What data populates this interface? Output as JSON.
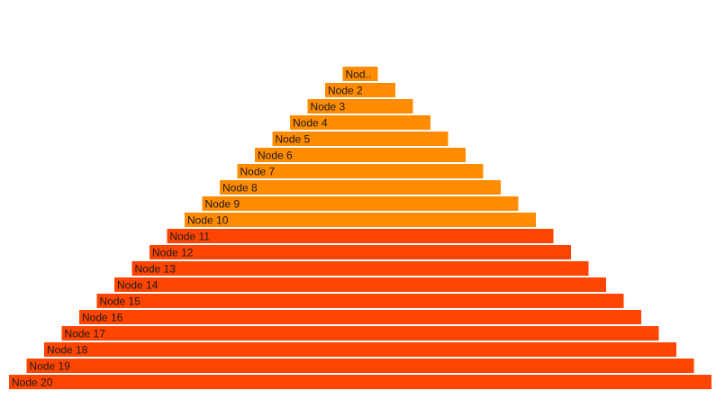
{
  "chart_data": {
    "type": "bar",
    "subtype": "pyramid",
    "title": "",
    "xlabel": "",
    "ylabel": "",
    "grid": false,
    "legend": "none",
    "categories": [
      "Nod..",
      "Node 2",
      "Node 3",
      "Node 4",
      "Node 5",
      "Node 6",
      "Node 7",
      "Node 8",
      "Node 9",
      "Node 10",
      "Node 11",
      "Node 12",
      "Node 13",
      "Node 14",
      "Node 15",
      "Node 16",
      "Node 17",
      "Node 18",
      "Node 19",
      "Node 20"
    ],
    "values": [
      1,
      2,
      3,
      4,
      5,
      6,
      7,
      8,
      9,
      10,
      11,
      12,
      13,
      14,
      15,
      16,
      17,
      18,
      19,
      20
    ],
    "groups": [
      {
        "range": [
          1,
          10
        ],
        "color": "#ff8c00"
      },
      {
        "range": [
          11,
          20
        ],
        "color": "#ff4500"
      }
    ],
    "colors": {
      "group_a": "#ff8c00",
      "group_b": "#ff4500",
      "label_text": "#1a1a1a"
    }
  }
}
